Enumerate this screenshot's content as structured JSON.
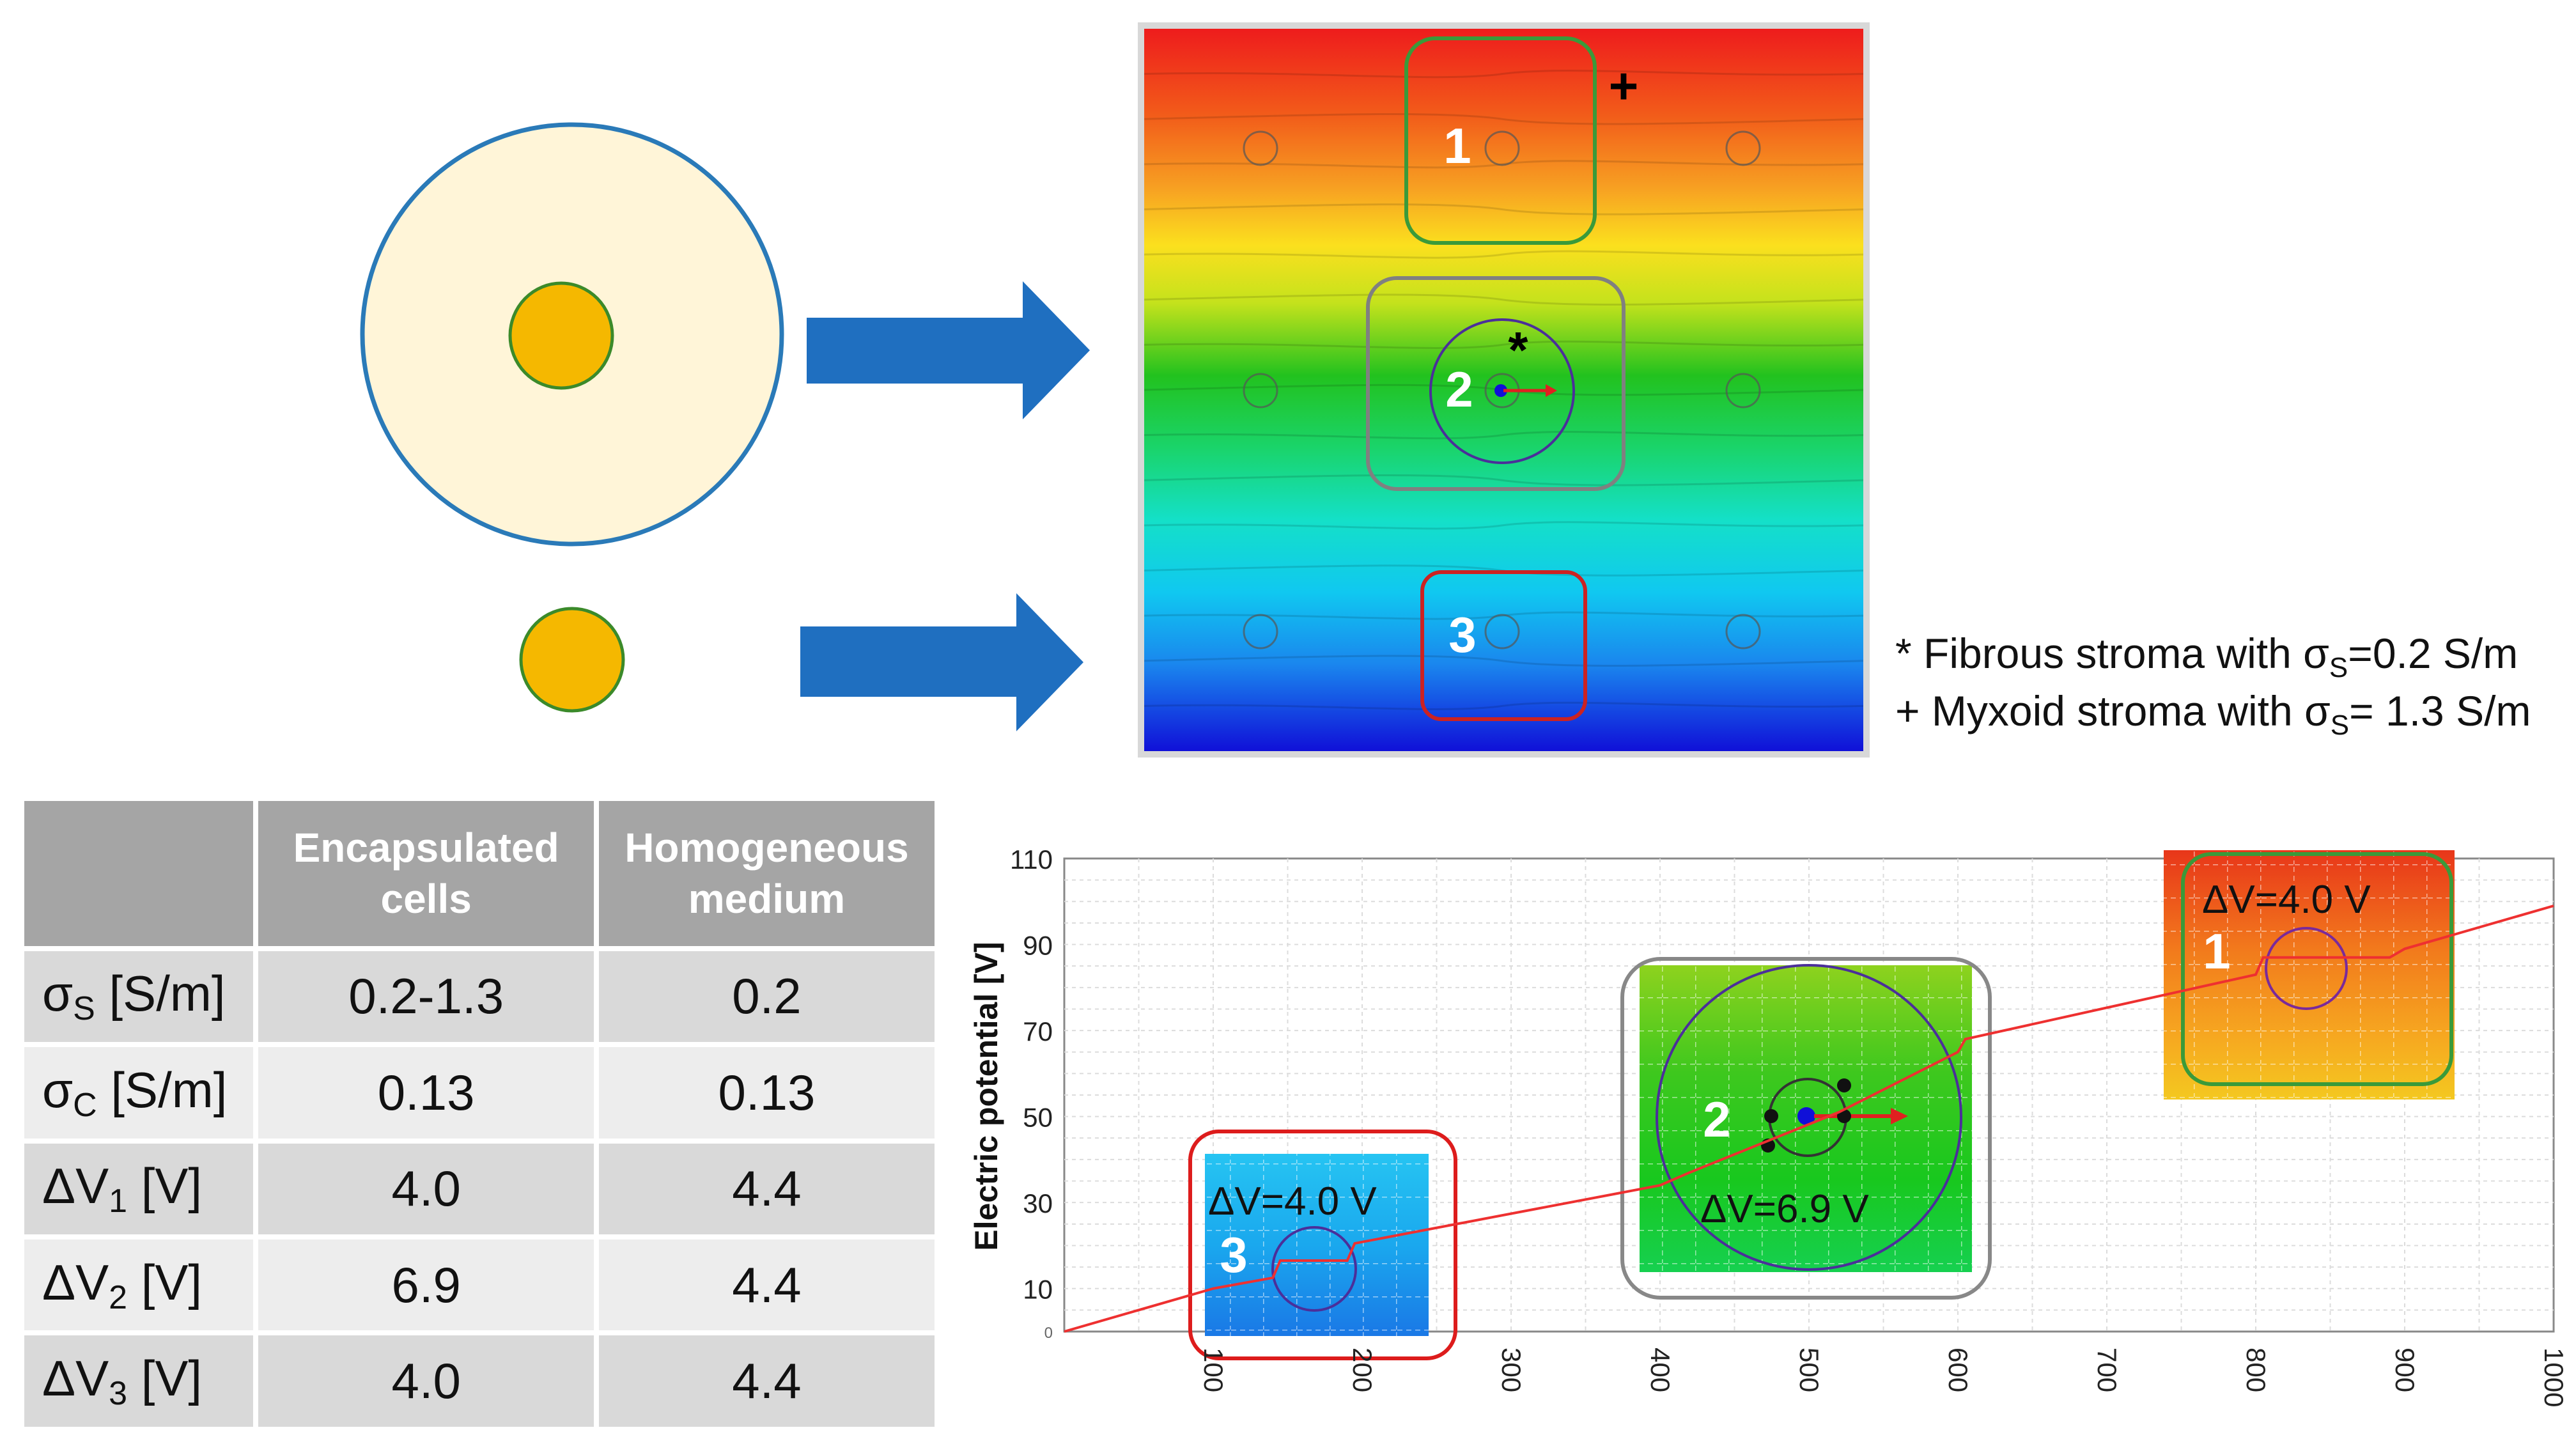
{
  "panel_labels": {
    "box1": "1",
    "box2": "2",
    "box3": "3"
  },
  "markers": {
    "fibrous": "*",
    "myxoid": "+"
  },
  "legend": {
    "fibrous": {
      "prefix": "* Fibrous stroma with σ",
      "sub": "S",
      "suffix": "=0.2 S/m"
    },
    "myxoid": {
      "prefix": "+ Myxoid stroma with σ",
      "sub": "S",
      "suffix": "= 1.3 S/m"
    }
  },
  "table": {
    "headers": [
      "",
      "Encapsulated cells",
      "Homogeneous medium"
    ],
    "header_lines": [
      [
        "Encapsulated",
        "cells"
      ],
      [
        "Homogeneous",
        "medium"
      ]
    ],
    "rows": [
      {
        "label": "σ",
        "sub": "S",
        "unit": " [S/m]",
        "values": [
          "0.2-1.3",
          "0.2"
        ]
      },
      {
        "label": "σ",
        "sub": "C",
        "unit": " [S/m]",
        "values": [
          "0.13",
          "0.13"
        ]
      },
      {
        "label": "ΔV",
        "sub": "1",
        "unit": " [V]",
        "values": [
          "4.0",
          "4.4"
        ]
      },
      {
        "label": "ΔV",
        "sub": "2",
        "unit": " [V]",
        "values": [
          "6.9",
          "4.4"
        ]
      },
      {
        "label": "ΔV",
        "sub": "3",
        "unit": " [V]",
        "values": [
          "4.0",
          "4.4"
        ]
      }
    ]
  },
  "chart_data": {
    "type": "line",
    "ylabel": "Electric potential [V]",
    "xlabel": "",
    "xlim": [
      0,
      1000
    ],
    "ylim": [
      0,
      110
    ],
    "x_ticks": [
      100,
      200,
      300,
      400,
      500,
      600,
      700,
      800,
      900,
      1000
    ],
    "y_ticks": [
      10,
      30,
      50,
      70,
      90,
      110
    ],
    "y_zero_label": "0",
    "series": [
      {
        "color": "#ee3030",
        "x": [
          0,
          100,
          140,
          145,
          190,
          195,
          400,
          420,
          520,
          600,
          605,
          800,
          805,
          890,
          900,
          1000
        ],
        "y": [
          0,
          10,
          12.5,
          16.5,
          16.5,
          20.5,
          34,
          37,
          51,
          65,
          68,
          83,
          87,
          87,
          89,
          99
        ]
      }
    ],
    "insets": [
      {
        "label": "3",
        "annotation": "ΔV=4.0 V"
      },
      {
        "label": "2",
        "annotation": "ΔV=6.9 V"
      },
      {
        "label": "1",
        "annotation": "ΔV=4.0 V"
      }
    ]
  },
  "colors": {
    "arrow": "#1f6fc0",
    "cell_fill": "#f5b800",
    "capsule_fill": "#fff5d8",
    "capsule_border": "#2a7ab8",
    "box1": "#3a9a3a",
    "box2": "#808080",
    "box3": "#cc2222"
  }
}
